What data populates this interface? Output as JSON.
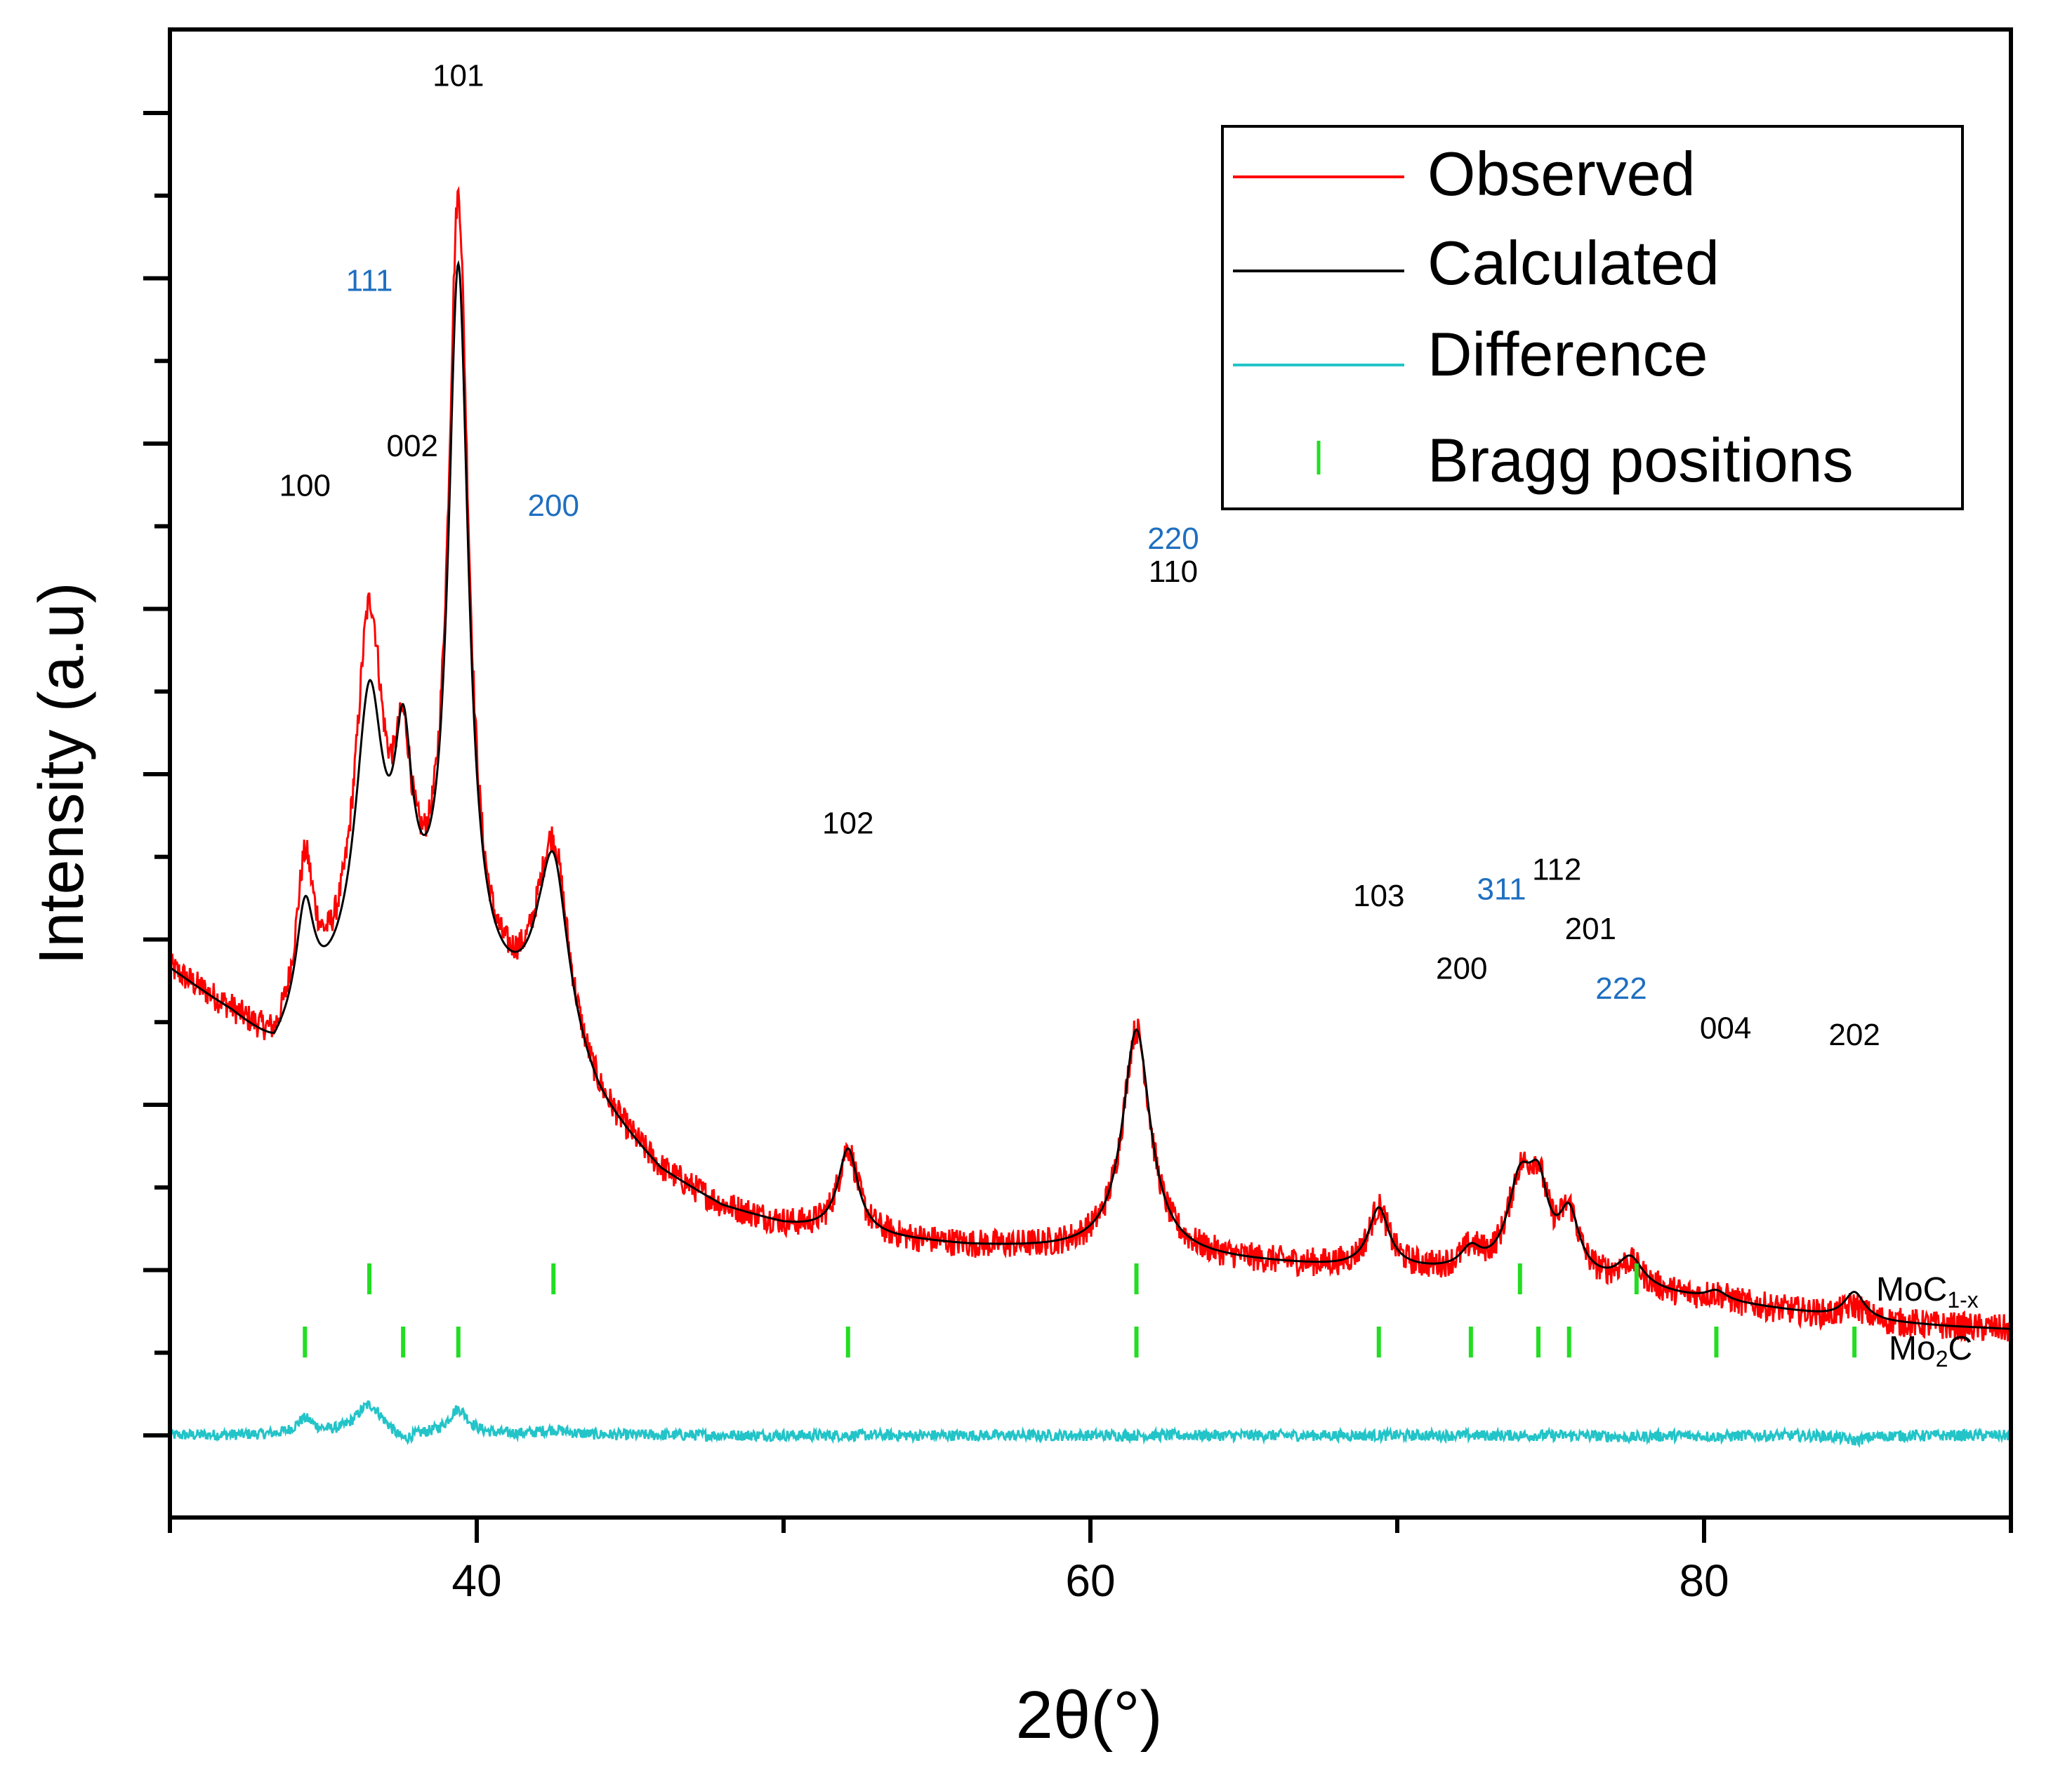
{
  "chart_data": {
    "type": "line",
    "title": "",
    "xlabel": "2θ(°)",
    "ylabel": "Intensity (a.u)",
    "xlim": [
      30,
      90
    ],
    "ylim": [
      0,
      100
    ],
    "x_ticks": [
      40,
      60,
      80
    ],
    "y_tick_labels_shown": false,
    "grid": false,
    "legend_position": "top-right",
    "colors": {
      "observed": "#ff0000",
      "calculated": "#000000",
      "difference": "#22c4c8",
      "bragg": "#22dd22",
      "label_black": "#000000",
      "label_blue": "#1f6fc0"
    },
    "legend": [
      {
        "label": "Observed",
        "series": "observed"
      },
      {
        "label": "Calculated",
        "series": "calculated"
      },
      {
        "label": "Difference",
        "series": "difference"
      },
      {
        "label": "Bragg positions",
        "series": "bragg"
      }
    ],
    "baseline": {
      "x": [
        30,
        32,
        33.4,
        34.5,
        36,
        38,
        40,
        42,
        44,
        46,
        48,
        50,
        52,
        54,
        56,
        58,
        60,
        62,
        64,
        66,
        68,
        70,
        72,
        74,
        76,
        78,
        80,
        82,
        84,
        86,
        88,
        90
      ],
      "y": [
        35,
        31.5,
        28.5,
        31,
        33,
        34.5,
        32,
        30.5,
        24,
        19.5,
        17,
        15.7,
        15,
        14.6,
        14.2,
        14.0,
        13.8,
        13.5,
        13.2,
        12.9,
        12.6,
        12.4,
        12.1,
        11.8,
        11.4,
        10.8,
        10.2,
        9.6,
        9.0,
        8.5,
        8.2,
        8.0
      ]
    },
    "peaks": [
      {
        "pos": 34.4,
        "label": "100",
        "phase": "Mo2C",
        "h_obs": 11,
        "h_calc": 8,
        "w": 0.35
      },
      {
        "pos": 36.5,
        "label": "111",
        "phase": "MoC1-x",
        "h_obs": 27,
        "h_calc": 21,
        "w": 0.55
      },
      {
        "pos": 37.6,
        "label": "002",
        "phase": "Mo2C",
        "h_obs": 12,
        "h_calc": 14,
        "w": 0.35
      },
      {
        "pos": 39.4,
        "label": "101",
        "phase": "Mo2C",
        "h_obs": 59,
        "h_calc": 54,
        "w": 0.4
      },
      {
        "pos": 42.5,
        "label": "200",
        "phase": "MoC1-x",
        "h_obs": 15,
        "h_calc": 14,
        "w": 0.6
      },
      {
        "pos": 52.1,
        "label": "102",
        "phase": "Mo2C",
        "h_obs": 6.5,
        "h_calc": 6.5,
        "w": 0.4
      },
      {
        "pos": 61.5,
        "label": "110",
        "phase": "Mo2C",
        "h_obs": 17,
        "h_calc": 17,
        "w": 0.55
      },
      {
        "pos": 69.4,
        "label": "103",
        "phase": "Mo2C",
        "h_obs": 4.5,
        "h_calc": 4.5,
        "w": 0.4
      },
      {
        "pos": 72.4,
        "label": "200",
        "phase": "Mo2C",
        "h_obs": 1.5,
        "h_calc": 1.5,
        "w": 0.4
      },
      {
        "pos": 74.0,
        "label": "311",
        "phase": "MoC1-x",
        "h_obs": 6.5,
        "h_calc": 6.5,
        "w": 0.5
      },
      {
        "pos": 74.6,
        "label": "112",
        "phase": "Mo2C",
        "h_obs": 5.5,
        "h_calc": 5.5,
        "w": 0.4
      },
      {
        "pos": 75.6,
        "label": "201",
        "phase": "Mo2C",
        "h_obs": 4.5,
        "h_calc": 4.5,
        "w": 0.4
      },
      {
        "pos": 77.6,
        "label": "222",
        "phase": "MoC1-x",
        "h_obs": 1.8,
        "h_calc": 2.2,
        "w": 0.5
      },
      {
        "pos": 80.4,
        "label": "004",
        "phase": "Mo2C",
        "h_obs": 0.5,
        "h_calc": 0.7,
        "w": 0.4
      },
      {
        "pos": 84.9,
        "label": "202",
        "phase": "Mo2C",
        "h_obs": 1.0,
        "h_calc": 2.0,
        "w": 0.4
      }
    ],
    "peak_labels": [
      {
        "text": "100",
        "x": 34.4,
        "y": 71,
        "color": "label_black"
      },
      {
        "text": "111",
        "x": 36.5,
        "y": 86.5,
        "color": "label_blue"
      },
      {
        "text": "002",
        "x": 37.9,
        "y": 74,
        "color": "label_black"
      },
      {
        "text": "101",
        "x": 39.4,
        "y": 102,
        "color": "label_black"
      },
      {
        "text": "200",
        "x": 42.5,
        "y": 69.5,
        "color": "label_blue"
      },
      {
        "text": "220",
        "x": 62.7,
        "y": 67,
        "color": "label_blue"
      },
      {
        "text": "110",
        "x": 62.7,
        "y": 64.5,
        "color": "label_black"
      },
      {
        "text": "102",
        "x": 52.1,
        "y": 45.5,
        "color": "label_black"
      },
      {
        "text": "103",
        "x": 69.4,
        "y": 40,
        "color": "label_black"
      },
      {
        "text": "311",
        "x": 73.4,
        "y": 40.5,
        "color": "label_blue"
      },
      {
        "text": "112",
        "x": 75.2,
        "y": 42,
        "color": "label_black"
      },
      {
        "text": "200",
        "x": 72.1,
        "y": 34.5,
        "color": "label_black"
      },
      {
        "text": "201",
        "x": 76.3,
        "y": 37.5,
        "color": "label_black"
      },
      {
        "text": "222",
        "x": 77.3,
        "y": 33,
        "color": "label_blue"
      },
      {
        "text": "004",
        "x": 80.7,
        "y": 30,
        "color": "label_black"
      },
      {
        "text": "202",
        "x": 84.9,
        "y": 29.5,
        "color": "label_black"
      }
    ],
    "bragg_positions": [
      {
        "phase": "MoC1-x",
        "positions": [
          36.5,
          42.5,
          61.5,
          74.0,
          77.8
        ]
      },
      {
        "phase": "Mo2C",
        "positions": [
          34.4,
          37.6,
          39.4,
          52.1,
          61.5,
          69.4,
          72.4,
          74.6,
          75.6,
          80.4,
          84.9
        ]
      }
    ],
    "phase_labels": [
      {
        "phase": "MoC1-x",
        "base": "MoC",
        "sub": "1-x",
        "tail": ""
      },
      {
        "phase": "Mo2C",
        "base": "Mo",
        "sub": "2",
        "tail": "C"
      }
    ],
    "difference_offset": 0
  }
}
